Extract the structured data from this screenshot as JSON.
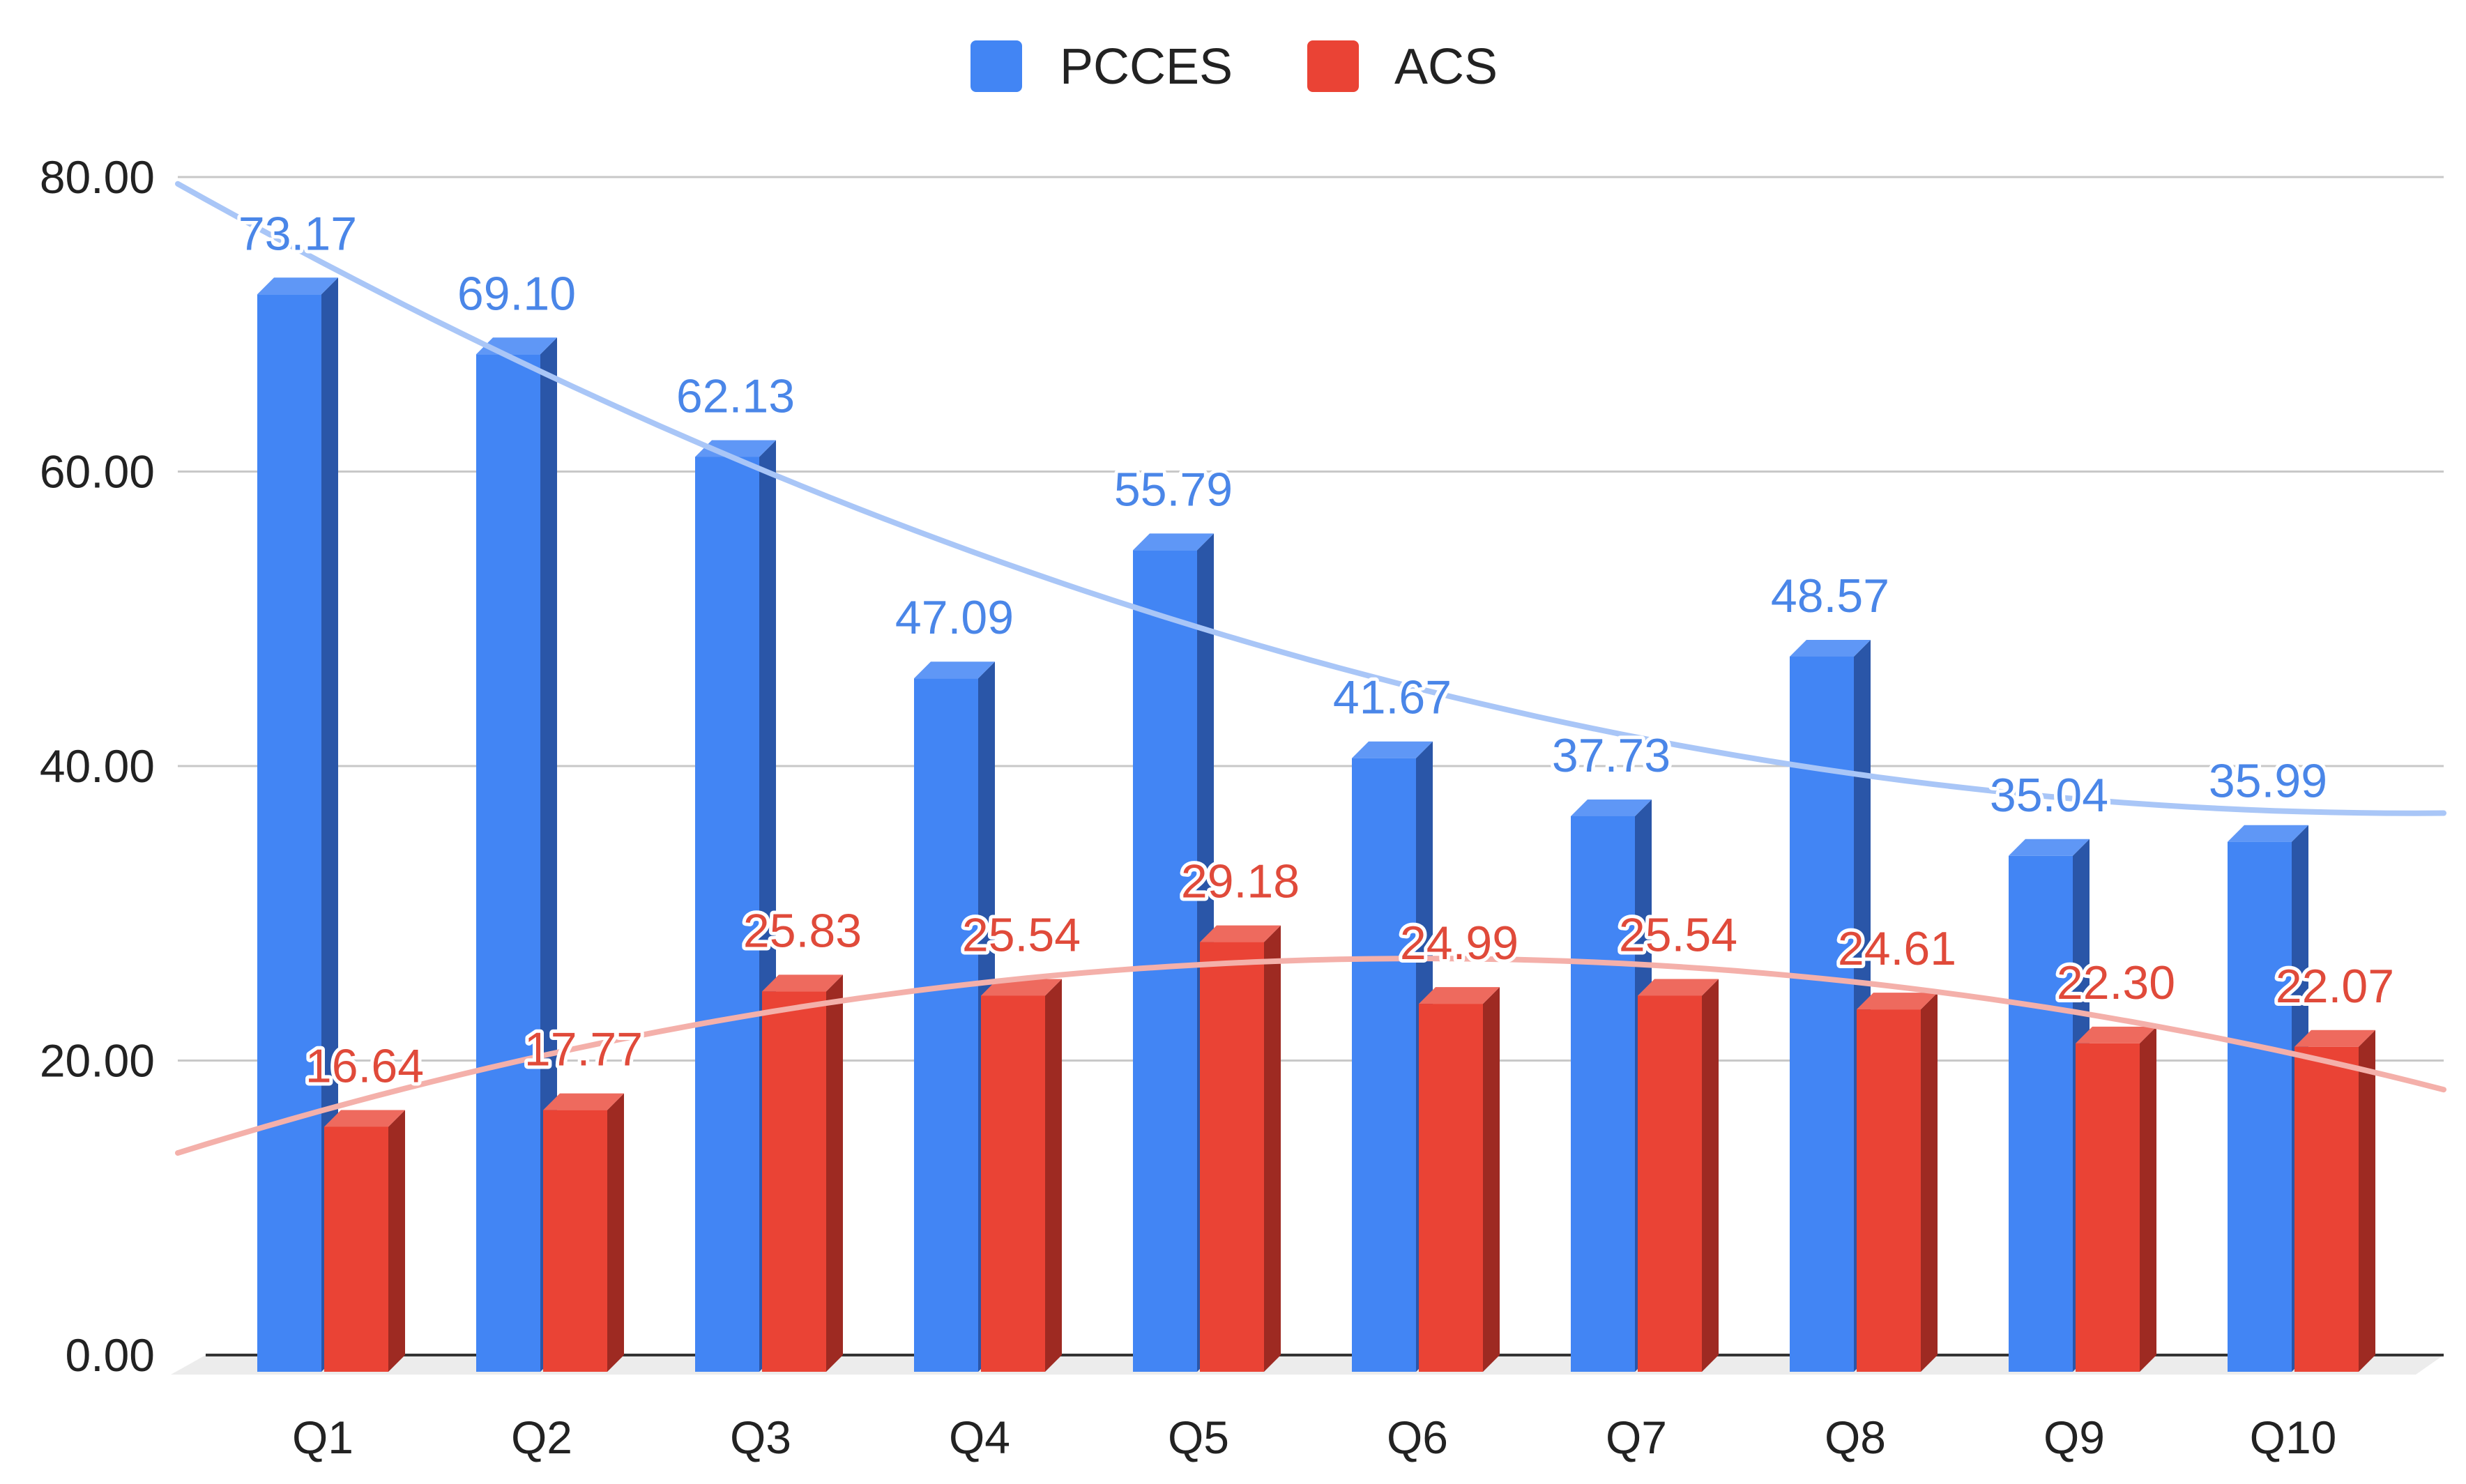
{
  "chart_data": {
    "type": "bar",
    "title": "",
    "xlabel": "",
    "ylabel": "",
    "categories": [
      "Q1",
      "Q2",
      "Q3",
      "Q4",
      "Q5",
      "Q6",
      "Q7",
      "Q8",
      "Q9",
      "Q10"
    ],
    "series": [
      {
        "name": "PCCES",
        "color": "#4285f4",
        "side_color": "#2a56a8",
        "top_color": "#5f97f6",
        "label_color": "#4a86e8",
        "trendline_color": "#a9c6f7",
        "values": [
          73.17,
          69.1,
          62.13,
          47.09,
          55.79,
          41.67,
          37.73,
          48.57,
          35.04,
          35.99
        ],
        "labels": [
          "73.17",
          "69.10",
          "62.13",
          "47.09",
          "55.79",
          "41.67",
          "37.73",
          "48.57",
          "35.04",
          "35.99"
        ],
        "trendline": "polynomial"
      },
      {
        "name": "ACS",
        "color": "#ea4335",
        "side_color": "#9e2a22",
        "top_color": "#ee6a5e",
        "label_color": "#e04a3a",
        "trendline_color": "#f4b0aa",
        "values": [
          16.64,
          17.77,
          25.83,
          25.54,
          29.18,
          24.99,
          25.54,
          24.61,
          22.3,
          22.07
        ],
        "labels": [
          "16.64",
          "17.77",
          "25.83",
          "25.54",
          "29.18",
          "24.99",
          "25.54",
          "24.61",
          "22.30",
          "22.07"
        ],
        "trendline": "polynomial"
      }
    ],
    "y_ticks": [
      "0.00",
      "20.00",
      "40.00",
      "60.00",
      "80.00"
    ],
    "ylim": [
      0,
      80
    ],
    "grid": true,
    "legend_position": "top-center",
    "style": "3d-bar"
  }
}
